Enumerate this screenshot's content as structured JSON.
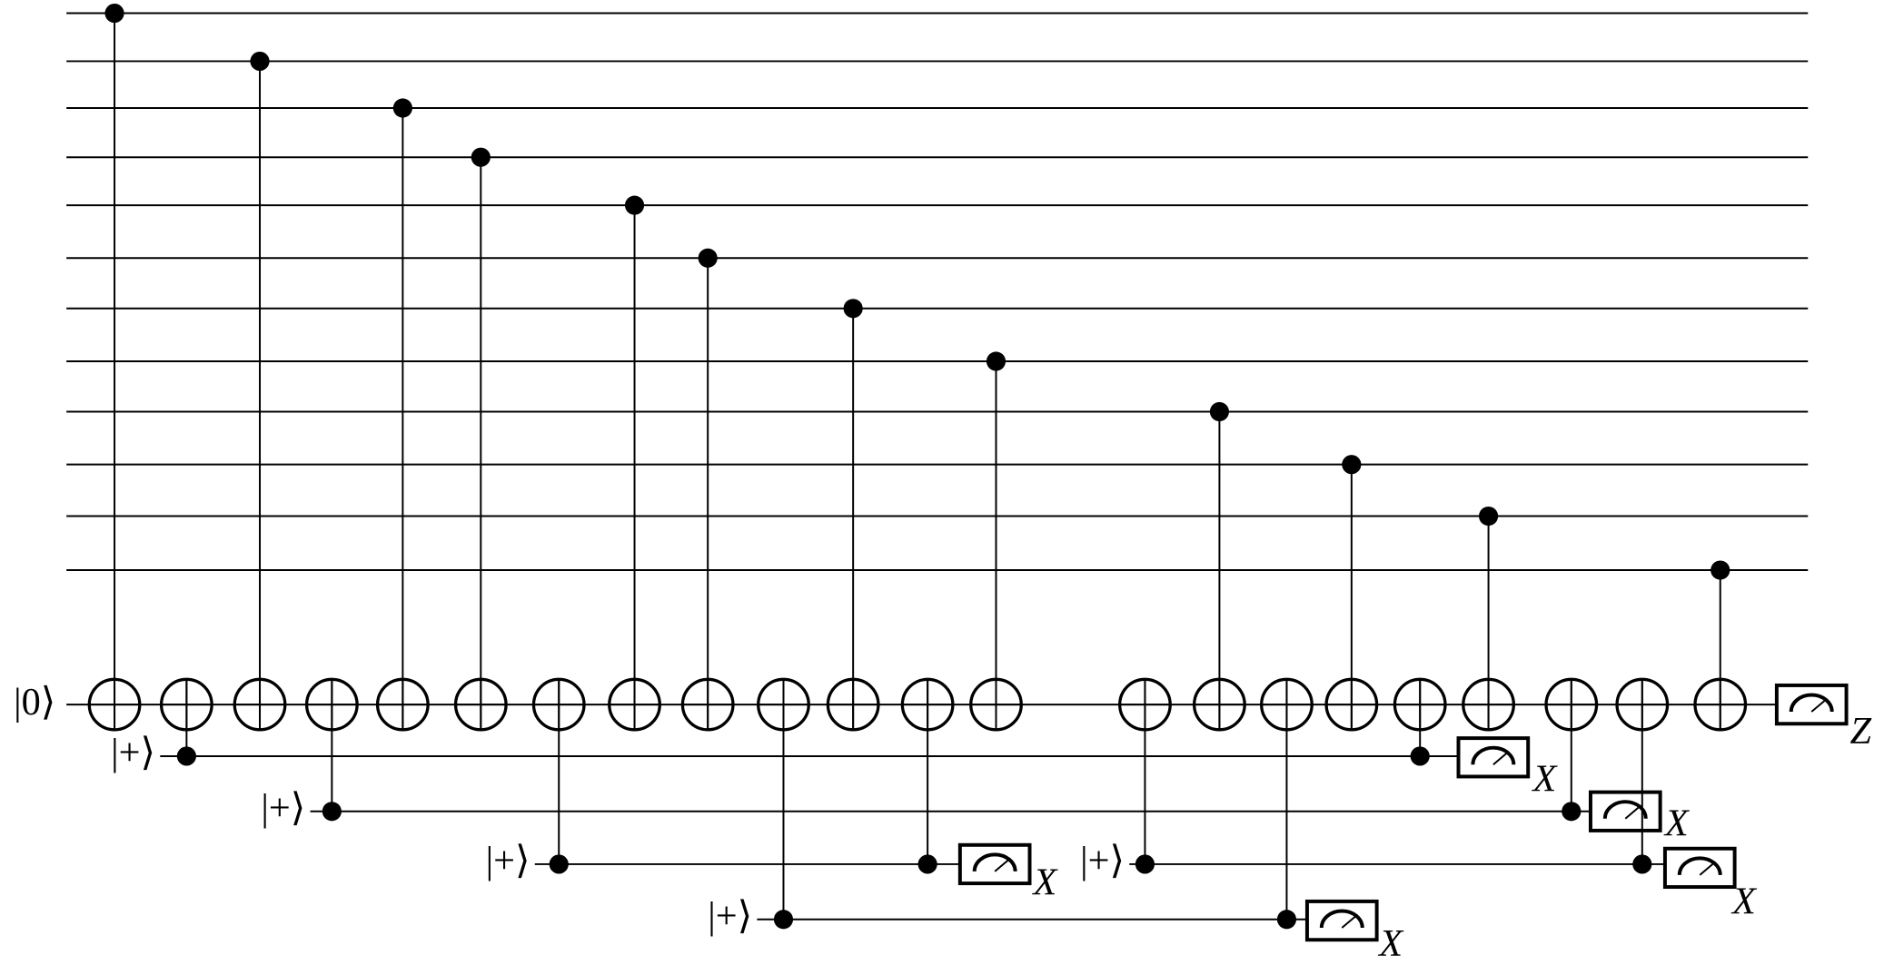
{
  "input_label": "|0⟩",
  "output_basis": "Z",
  "ancillas": [
    {
      "label": "|+⟩",
      "basis": "X"
    },
    {
      "label": "|+⟩",
      "basis": "X"
    },
    {
      "label": "|+⟩",
      "basis": "X"
    },
    {
      "label": "|+⟩",
      "basis": "X"
    },
    {
      "label": "|+⟩",
      "basis": "X"
    }
  ]
}
